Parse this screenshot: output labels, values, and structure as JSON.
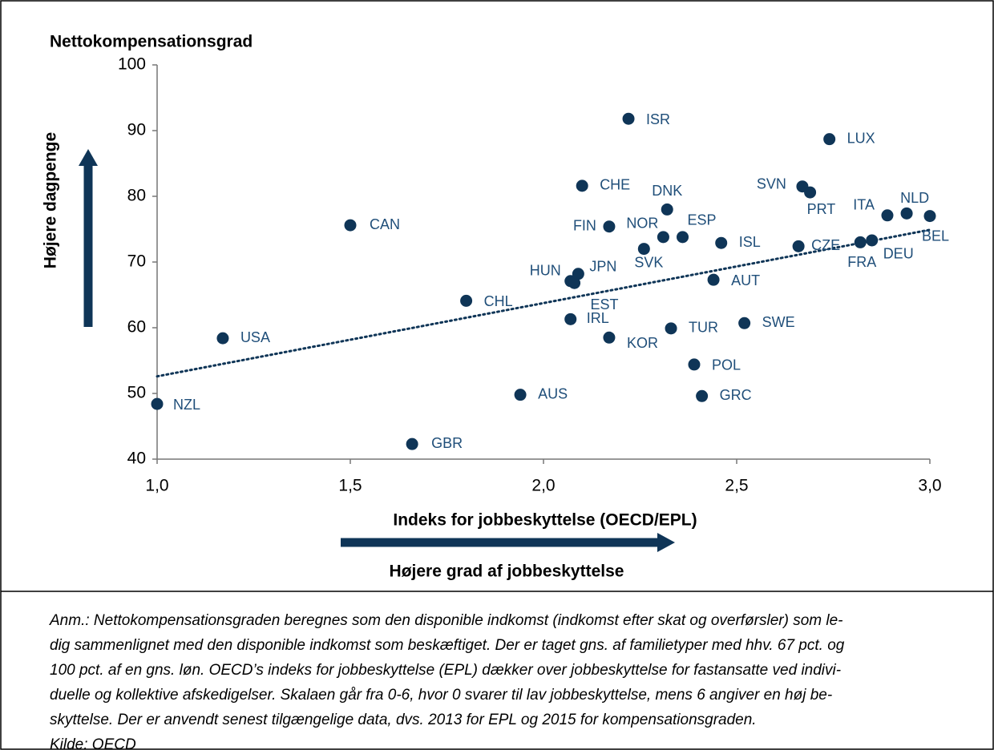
{
  "chart_data": {
    "type": "scatter",
    "title": "Nettokompensationsgrad",
    "y_axis_annotation": "Højere dagpenge",
    "x_axis_label": "Indeks for jobbeskyttelse (OECD/EPL)",
    "x_axis_annotation": "Højere grad af jobbeskyttelse",
    "color": "#0f3557",
    "label_color": "#1f4e79",
    "xlim": [
      1,
      3
    ],
    "ylim": [
      40,
      100
    ],
    "xticks": [
      {
        "value": 1,
        "label": "1,0"
      },
      {
        "value": 1.5,
        "label": "1,5"
      },
      {
        "value": 2,
        "label": "2,0"
      },
      {
        "value": 2.5,
        "label": "2,5"
      },
      {
        "value": 3,
        "label": "3,0"
      }
    ],
    "yticks": [
      40,
      50,
      60,
      70,
      80,
      90,
      100
    ],
    "labels": [
      "NZL",
      "USA",
      "CAN",
      "CHL",
      "AUS",
      "GBR",
      "HUN",
      "EST",
      "JPN",
      "IRL",
      "CHE",
      "FIN",
      "KOR",
      "ISR",
      "SVK",
      "DNK",
      "NOR",
      "ESP",
      "TUR",
      "POL",
      "GRC",
      "AUT",
      "ISL",
      "SWE",
      "CZE",
      "SVN",
      "PRT",
      "LUX",
      "FRA",
      "DEU",
      "ITA",
      "NLD",
      "BEL"
    ],
    "x": [
      1.0,
      1.17,
      1.5,
      1.8,
      1.94,
      1.66,
      2.07,
      2.08,
      2.09,
      2.07,
      2.1,
      2.17,
      2.17,
      2.22,
      2.26,
      2.32,
      2.31,
      2.36,
      2.33,
      2.39,
      2.41,
      2.44,
      2.46,
      2.52,
      2.66,
      2.67,
      2.69,
      2.74,
      2.82,
      2.85,
      2.89,
      2.94,
      3.0
    ],
    "values": [
      48.4,
      58.4,
      75.6,
      64.1,
      49.8,
      42.3,
      67.1,
      66.8,
      68.2,
      61.3,
      81.6,
      75.4,
      58.5,
      91.8,
      72.0,
      78.0,
      73.8,
      73.8,
      59.9,
      54.4,
      49.6,
      67.3,
      72.9,
      60.7,
      72.4,
      81.5,
      80.6,
      88.7,
      73.0,
      73.3,
      77.1,
      77.4,
      77.0
    ],
    "trendline": {
      "x": [
        1,
        3
      ],
      "y": [
        52.6,
        74.9
      ]
    },
    "notes": [
      "Anm.: Nettokompensationsgraden beregnes som den disponible indkomst (indkomst efter skat og overførsler) som le-",
      "dig sammenlignet med den disponible indkomst som beskæftiget. Der er taget gns. af familietyper med hhv. 67 pct. og",
      "100 pct. af en gns. løn. OECD’s indeks for jobbeskyttelse (EPL) dækker over jobbeskyttelse for fastansatte ved indivi-",
      "duelle og kollektive afskedigelser. Skalaen går fra 0-6, hvor 0 svarer til lav jobbeskyttelse, mens 6 angiver en høj be-",
      "skyttelse. Der er anvendt senest tilgængelige data, dvs. 2013 for EPL og 2015 for kompensationsgraden.",
      "Kilde: OECD"
    ]
  }
}
